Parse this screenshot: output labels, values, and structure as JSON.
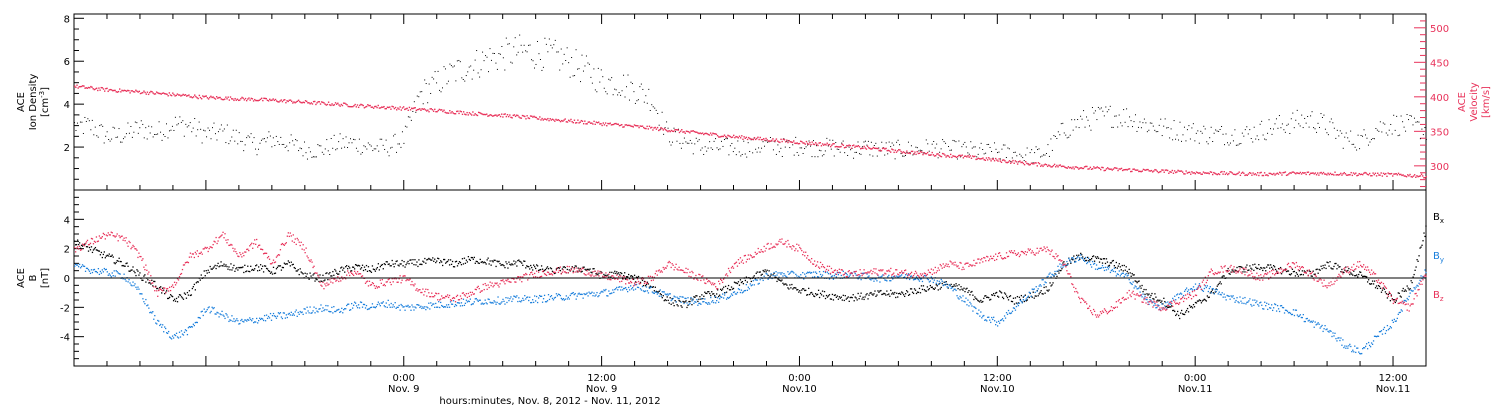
{
  "chart_data": [
    {
      "type": "scatter",
      "panel": "top",
      "ylabel_line1": "ACE",
      "ylabel_line2": "Ion Density",
      "ylabel_units": "[cm",
      "ylabel_units_sup": "-3",
      "ylabel_units_end": "]",
      "y2label_line1": "ACE",
      "y2label_line2": "Velocity",
      "y2label_units": "[km/s]",
      "xlim_hours": [
        -20,
        62
      ],
      "ylim": [
        0,
        8.2
      ],
      "y2lim": [
        265,
        520
      ],
      "y_ticks": [
        2,
        4,
        6,
        8
      ],
      "y2_ticks": [
        300,
        350,
        400,
        450,
        500
      ],
      "grid": false,
      "series": [
        {
          "color": "#000000",
          "axis": "left",
          "x": [
            -20,
            -19,
            -18,
            -17,
            -16,
            -15,
            -14,
            -13,
            -12,
            -11,
            -10,
            -9,
            -8,
            -7,
            -6,
            -5,
            -4,
            -3,
            -2,
            -1,
            0,
            1,
            2,
            3,
            4,
            5,
            6,
            7,
            8,
            9,
            10,
            11,
            12,
            13,
            14,
            15,
            16,
            17,
            18,
            19,
            20,
            21,
            22,
            23,
            24,
            25,
            26,
            27,
            28,
            29,
            30,
            31,
            32,
            33,
            34,
            35,
            36,
            37,
            38,
            39,
            40,
            41,
            42,
            43,
            44,
            45,
            46,
            47,
            48,
            49,
            50,
            51,
            52,
            53,
            54,
            55,
            56,
            57,
            58,
            59,
            60,
            61,
            62
          ],
          "values": [
            3.0,
            3.0,
            2.5,
            2.6,
            2.9,
            2.7,
            3.1,
            3.0,
            2.6,
            2.7,
            2.4,
            2.1,
            2.4,
            2.2,
            1.9,
            1.9,
            2.2,
            2.2,
            2.0,
            2.0,
            2.4,
            4.5,
            5.0,
            5.5,
            5.8,
            6.1,
            6.3,
            6.5,
            6.4,
            6.3,
            6.0,
            5.6,
            5.1,
            5.0,
            4.7,
            4.3,
            2.6,
            2.3,
            2.0,
            2.0,
            2.0,
            2.0,
            2.1,
            2.0,
            2.1,
            2.0,
            2.0,
            1.9,
            2.0,
            1.9,
            1.9,
            1.9,
            2.0,
            1.9,
            1.9,
            1.8,
            1.8,
            1.7,
            1.6,
            1.8,
            2.8,
            3.2,
            3.4,
            3.5,
            3.4,
            3.1,
            2.9,
            2.8,
            2.7,
            2.6,
            2.6,
            2.6,
            2.8,
            3.0,
            3.2,
            3.3,
            3.0,
            2.4,
            2.3,
            2.9,
            3.1,
            3.0,
            2.8
          ]
        },
        {
          "color": "#e8325a",
          "axis": "right",
          "x": [
            -20,
            -18,
            -16,
            -14,
            -12,
            -10,
            -8,
            -6,
            -4,
            -2,
            0,
            2,
            4,
            6,
            8,
            10,
            12,
            14,
            16,
            18,
            20,
            22,
            24,
            26,
            28,
            30,
            32,
            34,
            36,
            38,
            40,
            42,
            44,
            46,
            48,
            50,
            52,
            54,
            56,
            58,
            60,
            62
          ],
          "values": [
            416,
            411,
            408,
            404,
            400,
            398,
            396,
            393,
            390,
            387,
            384,
            381,
            377,
            374,
            370,
            366,
            362,
            358,
            353,
            348,
            343,
            339,
            335,
            331,
            327,
            322,
            318,
            314,
            309,
            304,
            300,
            297,
            295,
            293,
            291,
            290,
            289,
            290,
            290,
            289,
            288,
            286
          ]
        }
      ]
    },
    {
      "type": "scatter",
      "panel": "bottom",
      "ylabel_line1": "ACE",
      "ylabel_line2": "B",
      "ylabel_units": "[nT]",
      "xlabel": "hours:minutes, Nov.  8, 2012 - Nov. 11, 2012",
      "xlim_hours": [
        -20,
        62
      ],
      "ylim": [
        -6,
        6
      ],
      "y_ticks": [
        -4,
        -2,
        0,
        2,
        4
      ],
      "zero_line": true,
      "grid": false,
      "x_ticks": [
        {
          "hour": 0,
          "time": "0:00",
          "date": "Nov. 9"
        },
        {
          "hour": 12,
          "time": "12:00",
          "date": "Nov. 9"
        },
        {
          "hour": 24,
          "time": "0:00",
          "date": "Nov.10"
        },
        {
          "hour": 36,
          "time": "12:00",
          "date": "Nov.10"
        },
        {
          "hour": 48,
          "time": "0:00",
          "date": "Nov.11"
        },
        {
          "hour": 60,
          "time": "12:00",
          "date": "Nov.11"
        }
      ],
      "legend": [
        {
          "text": "B",
          "sub": "x",
          "color": "#000000"
        },
        {
          "text": "B",
          "sub": "y",
          "color": "#1a7fdc"
        },
        {
          "text": "B",
          "sub": "z",
          "color": "#e8325a"
        }
      ],
      "series": [
        {
          "name": "Bx",
          "color": "#000000",
          "x": [
            -20,
            -19,
            -18,
            -17,
            -16,
            -15,
            -14,
            -13,
            -12,
            -11,
            -10,
            -9,
            -8,
            -7,
            -6,
            -5,
            -4,
            -3,
            -2,
            -1,
            0,
            1,
            2,
            3,
            4,
            5,
            6,
            7,
            8,
            9,
            10,
            11,
            12,
            13,
            14,
            15,
            16,
            17,
            18,
            19,
            20,
            21,
            22,
            23,
            24,
            25,
            26,
            27,
            28,
            29,
            30,
            31,
            32,
            33,
            34,
            35,
            36,
            37,
            38,
            39,
            40,
            41,
            42,
            43,
            44,
            45,
            46,
            47,
            48,
            49,
            50,
            51,
            52,
            53,
            54,
            55,
            56,
            57,
            58,
            59,
            60,
            61,
            62
          ],
          "values": [
            2.5,
            2.0,
            1.5,
            1.0,
            0.2,
            -0.5,
            -1.5,
            -1.0,
            0.5,
            1.0,
            0.6,
            0.8,
            0.5,
            1.0,
            0.2,
            0.0,
            0.5,
            0.8,
            0.6,
            1.0,
            1.0,
            1.1,
            1.2,
            1.0,
            1.3,
            1.2,
            0.9,
            1.1,
            0.7,
            0.5,
            0.6,
            0.7,
            0.2,
            0.3,
            0.0,
            -0.5,
            -1.5,
            -1.8,
            -1.2,
            -1.0,
            -0.5,
            0.0,
            0.5,
            -0.4,
            -0.8,
            -1.0,
            -1.2,
            -1.3,
            -1.2,
            -1.0,
            -1.1,
            -0.8,
            -0.6,
            -0.4,
            -0.8,
            -1.5,
            -1.0,
            -1.5,
            -1.2,
            -0.7,
            1.0,
            1.5,
            1.3,
            1.0,
            0.5,
            -1.0,
            -1.5,
            -2.5,
            -1.8,
            -1.0,
            0.5,
            0.7,
            0.8,
            0.6,
            0.4,
            0.3,
            1.0,
            0.6,
            0.2,
            -0.5,
            -1.5,
            -0.5,
            3.5
          ]
        },
        {
          "name": "By",
          "color": "#1a7fdc",
          "x": [
            -20,
            -19,
            -18,
            -17,
            -16,
            -15,
            -14,
            -13,
            -12,
            -11,
            -10,
            -9,
            -8,
            -7,
            -6,
            -5,
            -4,
            -3,
            -2,
            -1,
            0,
            1,
            2,
            3,
            4,
            5,
            6,
            7,
            8,
            9,
            10,
            11,
            12,
            13,
            14,
            15,
            16,
            17,
            18,
            19,
            20,
            21,
            22,
            23,
            24,
            25,
            26,
            27,
            28,
            29,
            30,
            31,
            32,
            33,
            34,
            35,
            36,
            37,
            38,
            39,
            40,
            41,
            42,
            43,
            44,
            45,
            46,
            47,
            48,
            49,
            50,
            51,
            52,
            53,
            54,
            55,
            56,
            57,
            58,
            59,
            60,
            61,
            62
          ],
          "values": [
            0.8,
            0.6,
            0.4,
            0.2,
            -1.0,
            -3.0,
            -4.0,
            -3.5,
            -2.0,
            -2.5,
            -3.0,
            -2.8,
            -2.6,
            -2.5,
            -2.2,
            -2.0,
            -2.2,
            -1.8,
            -1.9,
            -1.7,
            -2.0,
            -1.9,
            -1.8,
            -1.7,
            -1.6,
            -1.5,
            -1.5,
            -1.4,
            -1.4,
            -1.3,
            -1.2,
            -1.1,
            -1.0,
            -0.8,
            -0.5,
            -0.8,
            -1.2,
            -1.5,
            -1.6,
            -1.4,
            -1.0,
            -0.5,
            0.2,
            0.3,
            0.2,
            0.3,
            0.2,
            0.3,
            0.1,
            0.0,
            0.2,
            0.1,
            0.0,
            -0.5,
            -1.5,
            -2.5,
            -3.0,
            -2.0,
            -1.0,
            0.0,
            1.0,
            1.5,
            0.8,
            0.5,
            0.0,
            -1.5,
            -2.0,
            -1.2,
            -0.5,
            -0.8,
            -1.3,
            -1.5,
            -1.8,
            -2.0,
            -2.3,
            -3.0,
            -3.5,
            -4.5,
            -5.0,
            -4.0,
            -3.0,
            -1.0,
            0.5
          ]
        },
        {
          "name": "Bz",
          "color": "#e8325a",
          "x": [
            -20,
            -19,
            -18,
            -17,
            -16,
            -15,
            -14,
            -13,
            -12,
            -11,
            -10,
            -9,
            -8,
            -7,
            -6,
            -5,
            -4,
            -3,
            -2,
            -1,
            0,
            1,
            2,
            3,
            4,
            5,
            6,
            7,
            8,
            9,
            10,
            11,
            12,
            13,
            14,
            15,
            16,
            17,
            18,
            19,
            20,
            21,
            22,
            23,
            24,
            25,
            26,
            27,
            28,
            29,
            30,
            31,
            32,
            33,
            34,
            35,
            36,
            37,
            38,
            39,
            40,
            41,
            42,
            43,
            44,
            45,
            46,
            47,
            48,
            49,
            50,
            51,
            52,
            53,
            54,
            55,
            56,
            57,
            58,
            59,
            60,
            61,
            62
          ],
          "values": [
            2.0,
            2.5,
            3.0,
            2.7,
            1.5,
            -1.0,
            -0.5,
            1.5,
            2.0,
            3.0,
            1.5,
            2.5,
            1.0,
            3.0,
            2.0,
            -0.5,
            0.0,
            0.5,
            -0.5,
            -0.2,
            0.0,
            -0.8,
            -1.2,
            -1.4,
            -1.0,
            -0.5,
            -0.3,
            0.0,
            0.3,
            0.5,
            0.6,
            0.5,
            0.2,
            0.0,
            -0.3,
            0.0,
            1.0,
            0.5,
            0.0,
            -0.5,
            1.0,
            1.5,
            2.2,
            2.5,
            2.0,
            1.0,
            0.5,
            0.3,
            0.4,
            0.5,
            0.4,
            0.3,
            0.5,
            1.0,
            0.8,
            1.2,
            1.5,
            1.7,
            1.8,
            2.0,
            1.0,
            -1.5,
            -2.5,
            -2.0,
            -1.0,
            -1.5,
            -2.0,
            -1.5,
            -1.0,
            0.5,
            0.7,
            0.5,
            0.0,
            0.5,
            1.0,
            0.3,
            -0.5,
            0.5,
            1.0,
            0.0,
            -1.5,
            -2.0,
            0.5
          ]
        }
      ]
    }
  ]
}
